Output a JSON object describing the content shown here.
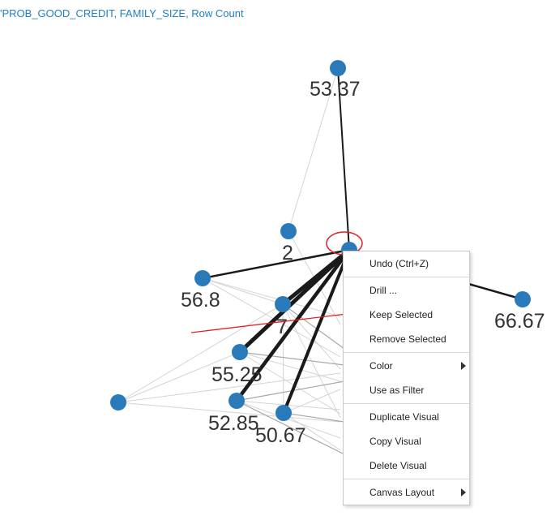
{
  "visual": {
    "title": "'PROB_GOOD_CREDIT, FAMILY_SIZE, Row Count",
    "node_color": "#2a7ab9",
    "node_labels": [
      "53.37",
      "2",
      "56.8",
      "7",
      "55.25",
      "52.85",
      "50.67",
      "66.67"
    ]
  },
  "context_menu": {
    "groups": [
      [
        {
          "label": "Undo (Ctrl+Z)",
          "submenu": false
        }
      ],
      [
        {
          "label": "Drill ...",
          "submenu": false
        },
        {
          "label": "Keep Selected",
          "submenu": false
        },
        {
          "label": "Remove Selected",
          "submenu": false
        }
      ],
      [
        {
          "label": "Color",
          "submenu": true
        },
        {
          "label": "Use as Filter",
          "submenu": false
        }
      ],
      [
        {
          "label": "Duplicate Visual",
          "submenu": false
        },
        {
          "label": "Copy Visual",
          "submenu": false
        },
        {
          "label": "Delete Visual",
          "submenu": false
        }
      ],
      [
        {
          "label": "Canvas Layout",
          "submenu": true
        }
      ]
    ]
  },
  "annotation": {
    "arrow_color": "#e02020",
    "circle_color": "#e02020"
  }
}
